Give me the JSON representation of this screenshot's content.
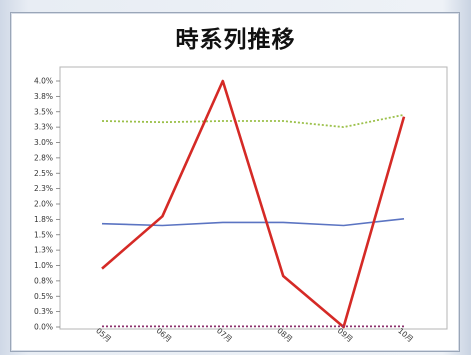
{
  "chart_data": {
    "type": "line",
    "title": "時系列推移",
    "xlabel": "",
    "ylabel": "",
    "categories": [
      "05月",
      "06月",
      "07月",
      "08月",
      "09月",
      "10月"
    ],
    "ylim": [
      0,
      4.0
    ],
    "yticks": [
      "0.0%",
      "0.3%",
      "0.5%",
      "0.8%",
      "1.0%",
      "1.3%",
      "1.5%",
      "1.8%",
      "2.0%",
      "2.3%",
      "2.5%",
      "2.8%",
      "3.0%",
      "3.3%",
      "3.5%",
      "3.8%",
      "4.0%"
    ],
    "grid": false,
    "series": [
      {
        "color": "#5b74c2",
        "style": "solid",
        "values": [
          1.68,
          1.65,
          1.7,
          1.7,
          1.65,
          1.76
        ]
      },
      {
        "color": "#9bc04a",
        "style": "dotted",
        "values": [
          3.35,
          3.33,
          3.35,
          3.35,
          3.25,
          3.45
        ]
      },
      {
        "color": "#d52a26",
        "style": "solid",
        "values": [
          0.95,
          1.8,
          4.0,
          0.83,
          0.0,
          3.42
        ]
      },
      {
        "color": "#8b2f6b",
        "style": "dotted",
        "values": [
          0.01,
          0.01,
          0.01,
          0.01,
          0.01,
          0.01
        ]
      }
    ]
  }
}
